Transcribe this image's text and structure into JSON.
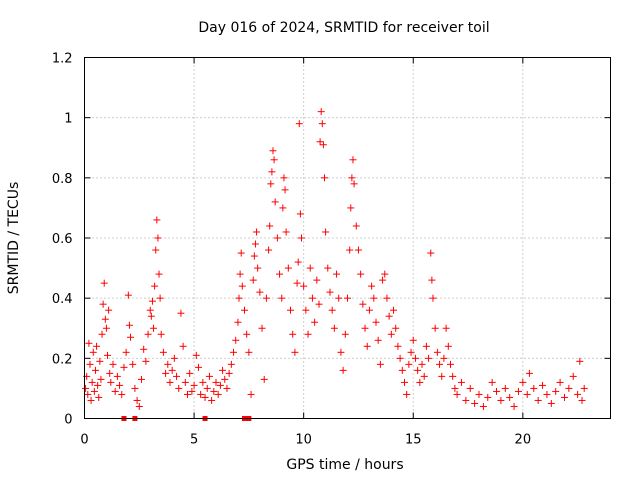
{
  "chart_data": {
    "type": "scatter",
    "title": "Day 016 of 2024, SRMTID for receiver toil",
    "xlabel": "GPS time / hours",
    "ylabel": "SRMTID / TECUs",
    "xlim": [
      0,
      24
    ],
    "ylim": [
      0,
      1.2
    ],
    "xticks": [
      0,
      5,
      10,
      15,
      20
    ],
    "xtick_labels": [
      "0",
      "5",
      "10",
      "15",
      "20"
    ],
    "yticks": [
      0,
      0.2,
      0.4,
      0.6,
      0.8,
      1.0,
      1.2
    ],
    "ytick_labels": [
      "0",
      "0.2",
      "0.4",
      "0.6",
      "0.8",
      "1",
      "1.2"
    ],
    "grid": true,
    "marker_color": "#ff0000",
    "series": [
      {
        "name": "SRMTID",
        "marker": "plus",
        "points": [
          [
            0.05,
            0.1
          ],
          [
            0.1,
            0.14
          ],
          [
            0.15,
            0.08
          ],
          [
            0.2,
            0.25
          ],
          [
            0.25,
            0.18
          ],
          [
            0.3,
            0.06
          ],
          [
            0.35,
            0.12
          ],
          [
            0.4,
            0.22
          ],
          [
            0.45,
            0.09
          ],
          [
            0.5,
            0.16
          ],
          [
            0.55,
            0.24
          ],
          [
            0.6,
            0.11
          ],
          [
            0.65,
            0.07
          ],
          [
            0.7,
            0.19
          ],
          [
            0.75,
            0.13
          ],
          [
            0.8,
            0.28
          ],
          [
            0.85,
            0.38
          ],
          [
            0.9,
            0.45
          ],
          [
            0.95,
            0.33
          ],
          [
            1.0,
            0.3
          ],
          [
            1.05,
            0.21
          ],
          [
            1.1,
            0.36
          ],
          [
            1.15,
            0.15
          ],
          [
            1.2,
            0.12
          ],
          [
            1.3,
            0.18
          ],
          [
            1.4,
            0.09
          ],
          [
            1.5,
            0.14
          ],
          [
            1.6,
            0.11
          ],
          [
            1.7,
            0.08
          ],
          [
            1.8,
            0.17
          ],
          [
            1.9,
            0.22
          ],
          [
            2.0,
            0.41
          ],
          [
            2.05,
            0.31
          ],
          [
            2.1,
            0.27
          ],
          [
            2.2,
            0.18
          ],
          [
            2.3,
            0.1
          ],
          [
            2.4,
            0.06
          ],
          [
            2.5,
            0.04
          ],
          [
            2.6,
            0.13
          ],
          [
            2.7,
            0.23
          ],
          [
            2.8,
            0.19
          ],
          [
            2.9,
            0.28
          ],
          [
            3.0,
            0.36
          ],
          [
            3.05,
            0.34
          ],
          [
            3.1,
            0.39
          ],
          [
            3.15,
            0.3
          ],
          [
            3.2,
            0.44
          ],
          [
            3.25,
            0.56
          ],
          [
            3.3,
            0.66
          ],
          [
            3.35,
            0.6
          ],
          [
            3.4,
            0.48
          ],
          [
            3.45,
            0.4
          ],
          [
            3.5,
            0.28
          ],
          [
            3.6,
            0.22
          ],
          [
            3.7,
            0.15
          ],
          [
            3.8,
            0.18
          ],
          [
            3.9,
            0.12
          ],
          [
            4.0,
            0.16
          ],
          [
            4.1,
            0.2
          ],
          [
            4.2,
            0.14
          ],
          [
            4.3,
            0.1
          ],
          [
            4.4,
            0.35
          ],
          [
            4.5,
            0.24
          ],
          [
            4.6,
            0.12
          ],
          [
            4.7,
            0.08
          ],
          [
            4.8,
            0.15
          ],
          [
            4.9,
            0.09
          ],
          [
            5.0,
            0.11
          ],
          [
            5.1,
            0.21
          ],
          [
            5.2,
            0.17
          ],
          [
            5.3,
            0.08
          ],
          [
            5.4,
            0.12
          ],
          [
            5.5,
            0.07
          ],
          [
            5.6,
            0.1
          ],
          [
            5.7,
            0.14
          ],
          [
            5.8,
            0.06
          ],
          [
            5.9,
            0.09
          ],
          [
            6.0,
            0.12
          ],
          [
            6.1,
            0.08
          ],
          [
            6.2,
            0.11
          ],
          [
            6.3,
            0.16
          ],
          [
            6.4,
            0.13
          ],
          [
            6.5,
            0.1
          ],
          [
            6.6,
            0.15
          ],
          [
            6.7,
            0.18
          ],
          [
            6.8,
            0.22
          ],
          [
            6.9,
            0.26
          ],
          [
            7.0,
            0.32
          ],
          [
            7.05,
            0.4
          ],
          [
            7.1,
            0.48
          ],
          [
            7.15,
            0.55
          ],
          [
            7.2,
            0.44
          ],
          [
            7.3,
            0.36
          ],
          [
            7.4,
            0.28
          ],
          [
            7.5,
            0.22
          ],
          [
            7.6,
            0.08
          ],
          [
            7.7,
            0.46
          ],
          [
            7.75,
            0.54
          ],
          [
            7.8,
            0.58
          ],
          [
            7.85,
            0.62
          ],
          [
            7.9,
            0.5
          ],
          [
            8.0,
            0.42
          ],
          [
            8.1,
            0.3
          ],
          [
            8.2,
            0.13
          ],
          [
            8.3,
            0.4
          ],
          [
            8.4,
            0.56
          ],
          [
            8.45,
            0.64
          ],
          [
            8.5,
            0.78
          ],
          [
            8.55,
            0.82
          ],
          [
            8.6,
            0.89
          ],
          [
            8.65,
            0.86
          ],
          [
            8.7,
            0.72
          ],
          [
            8.8,
            0.6
          ],
          [
            8.9,
            0.48
          ],
          [
            9.0,
            0.4
          ],
          [
            9.05,
            0.7
          ],
          [
            9.1,
            0.8
          ],
          [
            9.15,
            0.76
          ],
          [
            9.2,
            0.62
          ],
          [
            9.3,
            0.5
          ],
          [
            9.4,
            0.36
          ],
          [
            9.5,
            0.28
          ],
          [
            9.6,
            0.22
          ],
          [
            9.7,
            0.45
          ],
          [
            9.75,
            0.52
          ],
          [
            9.8,
            0.98
          ],
          [
            9.85,
            0.68
          ],
          [
            9.9,
            0.6
          ],
          [
            10.0,
            0.44
          ],
          [
            10.1,
            0.36
          ],
          [
            10.2,
            0.28
          ],
          [
            10.3,
            0.5
          ],
          [
            10.4,
            0.4
          ],
          [
            10.5,
            0.32
          ],
          [
            10.6,
            0.46
          ],
          [
            10.7,
            0.38
          ],
          [
            10.75,
            0.92
          ],
          [
            10.8,
            1.02
          ],
          [
            10.85,
            0.98
          ],
          [
            10.9,
            0.91
          ],
          [
            10.95,
            0.8
          ],
          [
            11.0,
            0.62
          ],
          [
            11.1,
            0.5
          ],
          [
            11.2,
            0.42
          ],
          [
            11.3,
            0.36
          ],
          [
            11.4,
            0.3
          ],
          [
            11.5,
            0.48
          ],
          [
            11.6,
            0.4
          ],
          [
            11.7,
            0.22
          ],
          [
            11.8,
            0.16
          ],
          [
            11.9,
            0.28
          ],
          [
            12.0,
            0.4
          ],
          [
            12.1,
            0.56
          ],
          [
            12.15,
            0.7
          ],
          [
            12.2,
            0.8
          ],
          [
            12.25,
            0.86
          ],
          [
            12.3,
            0.78
          ],
          [
            12.4,
            0.64
          ],
          [
            12.5,
            0.56
          ],
          [
            12.6,
            0.48
          ],
          [
            12.7,
            0.38
          ],
          [
            12.8,
            0.3
          ],
          [
            12.9,
            0.24
          ],
          [
            13.0,
            0.36
          ],
          [
            13.1,
            0.44
          ],
          [
            13.2,
            0.4
          ],
          [
            13.3,
            0.32
          ],
          [
            13.4,
            0.26
          ],
          [
            13.5,
            0.18
          ],
          [
            13.6,
            0.46
          ],
          [
            13.7,
            0.48
          ],
          [
            13.8,
            0.4
          ],
          [
            13.9,
            0.34
          ],
          [
            14.0,
            0.28
          ],
          [
            14.1,
            0.36
          ],
          [
            14.2,
            0.3
          ],
          [
            14.3,
            0.24
          ],
          [
            14.4,
            0.2
          ],
          [
            14.5,
            0.16
          ],
          [
            14.6,
            0.12
          ],
          [
            14.7,
            0.08
          ],
          [
            14.8,
            0.18
          ],
          [
            14.9,
            0.22
          ],
          [
            15.0,
            0.26
          ],
          [
            15.1,
            0.2
          ],
          [
            15.2,
            0.16
          ],
          [
            15.3,
            0.12
          ],
          [
            15.4,
            0.18
          ],
          [
            15.5,
            0.14
          ],
          [
            15.6,
            0.24
          ],
          [
            15.7,
            0.2
          ],
          [
            15.8,
            0.55
          ],
          [
            15.85,
            0.46
          ],
          [
            15.9,
            0.4
          ],
          [
            16.0,
            0.3
          ],
          [
            16.1,
            0.22
          ],
          [
            16.2,
            0.18
          ],
          [
            16.3,
            0.14
          ],
          [
            16.4,
            0.2
          ],
          [
            16.5,
            0.3
          ],
          [
            16.6,
            0.24
          ],
          [
            16.7,
            0.18
          ],
          [
            16.8,
            0.14
          ],
          [
            16.9,
            0.1
          ],
          [
            17.0,
            0.08
          ],
          [
            17.2,
            0.12
          ],
          [
            17.4,
            0.06
          ],
          [
            17.6,
            0.1
          ],
          [
            17.8,
            0.05
          ],
          [
            18.0,
            0.08
          ],
          [
            18.2,
            0.04
          ],
          [
            18.4,
            0.07
          ],
          [
            18.6,
            0.12
          ],
          [
            18.8,
            0.09
          ],
          [
            19.0,
            0.06
          ],
          [
            19.2,
            0.1
          ],
          [
            19.4,
            0.07
          ],
          [
            19.6,
            0.04
          ],
          [
            19.8,
            0.09
          ],
          [
            20.0,
            0.12
          ],
          [
            20.2,
            0.08
          ],
          [
            20.3,
            0.15
          ],
          [
            20.5,
            0.1
          ],
          [
            20.7,
            0.06
          ],
          [
            20.9,
            0.11
          ],
          [
            21.1,
            0.08
          ],
          [
            21.3,
            0.05
          ],
          [
            21.5,
            0.09
          ],
          [
            21.7,
            0.12
          ],
          [
            21.9,
            0.07
          ],
          [
            22.1,
            0.1
          ],
          [
            22.3,
            0.14
          ],
          [
            22.5,
            0.08
          ],
          [
            22.6,
            0.19
          ],
          [
            22.7,
            0.06
          ],
          [
            22.8,
            0.1
          ]
        ]
      },
      {
        "name": "zero-values",
        "marker": "square",
        "points": [
          [
            1.8,
            0.0
          ],
          [
            2.3,
            0.0
          ],
          [
            5.5,
            0.0
          ],
          [
            7.3,
            0.0
          ],
          [
            7.5,
            0.0
          ]
        ]
      }
    ]
  }
}
